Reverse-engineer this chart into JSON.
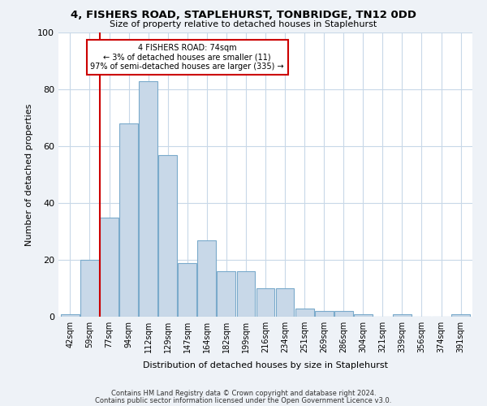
{
  "title": "4, FISHERS ROAD, STAPLEHURST, TONBRIDGE, TN12 0DD",
  "subtitle": "Size of property relative to detached houses in Staplehurst",
  "xlabel": "Distribution of detached houses by size in Staplehurst",
  "ylabel": "Number of detached properties",
  "categories": [
    "42sqm",
    "59sqm",
    "77sqm",
    "94sqm",
    "112sqm",
    "129sqm",
    "147sqm",
    "164sqm",
    "182sqm",
    "199sqm",
    "216sqm",
    "234sqm",
    "251sqm",
    "269sqm",
    "286sqm",
    "304sqm",
    "321sqm",
    "339sqm",
    "356sqm",
    "374sqm",
    "391sqm"
  ],
  "values": [
    1,
    20,
    35,
    68,
    83,
    57,
    19,
    27,
    16,
    16,
    10,
    10,
    3,
    2,
    2,
    1,
    0,
    1,
    0,
    0,
    1
  ],
  "bar_color": "#c8d8e8",
  "bar_edge_color": "#7aaacb",
  "vline_color": "#cc0000",
  "vline_index": 1.5,
  "annotation_text": "4 FISHERS ROAD: 74sqm\n← 3% of detached houses are smaller (11)\n97% of semi-detached houses are larger (335) →",
  "annotation_box_color": "#ffffff",
  "annotation_box_edge": "#cc0000",
  "ylim": [
    0,
    100
  ],
  "yticks": [
    0,
    20,
    40,
    60,
    80,
    100
  ],
  "footer_line1": "Contains HM Land Registry data © Crown copyright and database right 2024.",
  "footer_line2": "Contains public sector information licensed under the Open Government Licence v3.0.",
  "bg_color": "#eef2f7",
  "plot_bg_color": "#ffffff",
  "grid_color": "#c8d8e8"
}
